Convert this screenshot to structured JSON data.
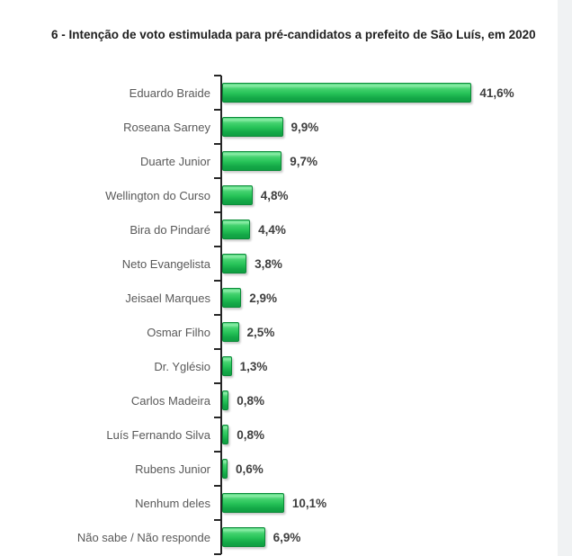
{
  "title": "6 - Intenção de voto estimulada para pré-candidatos a prefeito de São Luís, em 2020",
  "chart_data": {
    "type": "bar",
    "orientation": "horizontal",
    "title": "6 - Intenção de voto estimulada para pré-candidatos a prefeito de São Luís, em 2020",
    "categories": [
      "Eduardo Braide",
      "Roseana Sarney",
      "Duarte Junior",
      "Wellington do Curso",
      "Bira do Pindaré",
      "Neto Evangelista",
      "Jeisael Marques",
      "Osmar Filho",
      "Dr. Yglésio",
      "Carlos Madeira",
      "Luís Fernando Silva",
      "Rubens Junior",
      "Nenhum deles",
      "Não sabe / Não responde"
    ],
    "values": [
      41.6,
      9.9,
      9.7,
      4.8,
      4.4,
      3.8,
      2.9,
      2.5,
      1.3,
      0.8,
      0.8,
      0.6,
      10.1,
      6.9
    ],
    "value_labels": [
      "41,6%",
      "9,9%",
      "9,7%",
      "4,8%",
      "4,4%",
      "3,8%",
      "2,9%",
      "2,5%",
      "1,3%",
      "0,8%",
      "0,8%",
      "0,6%",
      "10,1%",
      "6,9%"
    ],
    "xlabel": "",
    "ylabel": "",
    "xlim": [
      0,
      42
    ],
    "grid": false,
    "legend": false,
    "bar_color": "#25c257",
    "bar_border_color": "#0b8a38",
    "axis_color": "#262626",
    "category_label_color": "#595959",
    "value_label_color": "#3f3f3f"
  }
}
